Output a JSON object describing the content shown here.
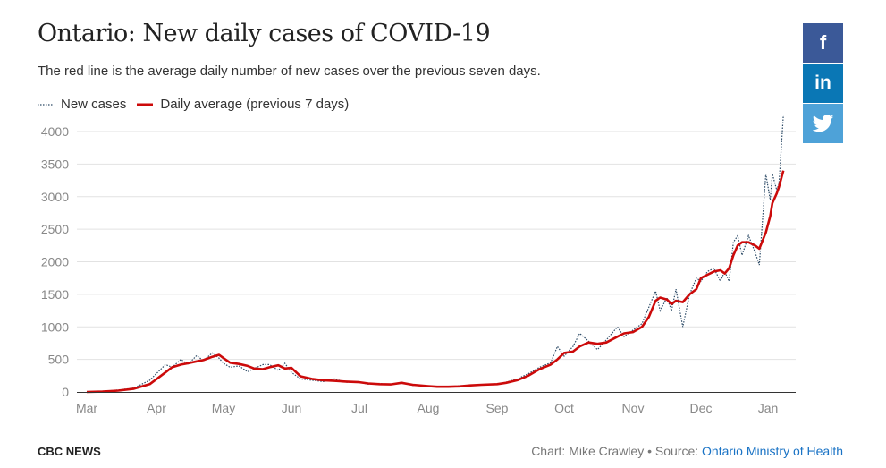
{
  "header": {
    "title": "Ontario: New daily cases of COVID-19",
    "subtitle": "The red line is the average daily number of new cases over the previous seven days."
  },
  "legend": {
    "new_cases_label": "New cases",
    "average_label": "Daily average (previous 7 days)"
  },
  "social": {
    "facebook_label": "f",
    "linkedin_label": "in",
    "twitter_icon": "twitter-bird-icon"
  },
  "footer": {
    "brand": "CBC NEWS",
    "credit_prefix": "Chart: Mike Crawley • Source: ",
    "source_link": "Ontario Ministry of Health"
  },
  "colors": {
    "average_line": "#cc0a0a",
    "cases_line": "#2c4a66",
    "grid": "#e2e2e2",
    "axis": "#333333",
    "facebook": "#3b5998",
    "linkedin": "#0a77b5",
    "twitter": "#4ea2d8"
  },
  "chart_data": {
    "type": "line",
    "ylim": [
      0,
      4000
    ],
    "yticks": [
      "0",
      "500",
      "1000",
      "1500",
      "2000",
      "2500",
      "3000",
      "3500",
      "4000"
    ],
    "xticks": [
      "Mar",
      "Apr",
      "May",
      "Jun",
      "Jul",
      "Aug",
      "Sep",
      "Oct",
      "Nov",
      "Dec",
      "Jan"
    ],
    "grid": true,
    "legend_position": "top-left",
    "series": [
      {
        "name": "New cases",
        "style": "dotted",
        "points": [
          [
            "Mar",
            0
          ],
          [
            "Mar 8",
            5
          ],
          [
            "Mar 15",
            30
          ],
          [
            "Mar 22",
            60
          ],
          [
            "Mar 29",
            180
          ],
          [
            "Apr 5",
            420
          ],
          [
            "Apr 8",
            380
          ],
          [
            "Apr 12",
            500
          ],
          [
            "Apr 15",
            420
          ],
          [
            "Apr 19",
            560
          ],
          [
            "Apr 22",
            480
          ],
          [
            "Apr 26",
            600
          ],
          [
            "Apr 29",
            520
          ],
          [
            "May 1",
            440
          ],
          [
            "May 4",
            380
          ],
          [
            "May 8",
            400
          ],
          [
            "May 12",
            310
          ],
          [
            "May 15",
            360
          ],
          [
            "May 19",
            420
          ],
          [
            "May 22",
            420
          ],
          [
            "May 26",
            330
          ],
          [
            "May 29",
            440
          ],
          [
            "Jun 1",
            300
          ],
          [
            "Jun 5",
            200
          ],
          [
            "Jun 10",
            180
          ],
          [
            "Jun 15",
            160
          ],
          [
            "Jun 20",
            200
          ],
          [
            "Jun 25",
            150
          ],
          [
            "Jul 1",
            150
          ],
          [
            "Jul 5",
            120
          ],
          [
            "Jul 10",
            130
          ],
          [
            "Jul 15",
            110
          ],
          [
            "Jul 20",
            150
          ],
          [
            "Jul 25",
            100
          ],
          [
            "Aug 1",
            90
          ],
          [
            "Aug 5",
            80
          ],
          [
            "Aug 10",
            70
          ],
          [
            "Aug 15",
            95
          ],
          [
            "Aug 20",
            100
          ],
          [
            "Aug 25",
            110
          ],
          [
            "Sep 1",
            120
          ],
          [
            "Sep 5",
            150
          ],
          [
            "Sep 10",
            200
          ],
          [
            "Sep 15",
            280
          ],
          [
            "Sep 20",
            380
          ],
          [
            "Sep 25",
            450
          ],
          [
            "Sep 28",
            700
          ],
          [
            "Oct 1",
            550
          ],
          [
            "Oct 5",
            700
          ],
          [
            "Oct 8",
            900
          ],
          [
            "Oct 12",
            780
          ],
          [
            "Oct 16",
            650
          ],
          [
            "Oct 20",
            800
          ],
          [
            "Oct 25",
            1000
          ],
          [
            "Oct 28",
            850
          ],
          [
            "Nov 1",
            950
          ],
          [
            "Nov 5",
            1050
          ],
          [
            "Nov 8",
            1300
          ],
          [
            "Nov 11",
            1550
          ],
          [
            "Nov 13",
            1250
          ],
          [
            "Nov 16",
            1450
          ],
          [
            "Nov 18",
            1250
          ],
          [
            "Nov 20",
            1580
          ],
          [
            "Nov 23",
            1000
          ],
          [
            "Nov 26",
            1500
          ],
          [
            "Nov 29",
            1750
          ],
          [
            "Dec 1",
            1700
          ],
          [
            "Dec 4",
            1850
          ],
          [
            "Dec 7",
            1900
          ],
          [
            "Dec 10",
            1700
          ],
          [
            "Dec 12",
            1850
          ],
          [
            "Dec 14",
            1700
          ],
          [
            "Dec 16",
            2300
          ],
          [
            "Dec 18",
            2400
          ],
          [
            "Dec 20",
            2100
          ],
          [
            "Dec 23",
            2400
          ],
          [
            "Dec 26",
            2150
          ],
          [
            "Dec 28",
            1950
          ],
          [
            "Dec 31",
            3350
          ],
          [
            "Jan 2",
            2950
          ],
          [
            "Jan 3",
            3350
          ],
          [
            "Jan 5",
            3100
          ],
          [
            "Jan 6",
            3200
          ],
          [
            "Jan 8",
            4250
          ]
        ]
      },
      {
        "name": "Daily average (previous 7 days)",
        "style": "solid",
        "points": [
          [
            "Mar",
            0
          ],
          [
            "Mar 8",
            5
          ],
          [
            "Mar 15",
            20
          ],
          [
            "Mar 22",
            50
          ],
          [
            "Mar 29",
            120
          ],
          [
            "Apr 5",
            300
          ],
          [
            "Apr 8",
            380
          ],
          [
            "Apr 12",
            420
          ],
          [
            "Apr 15",
            440
          ],
          [
            "Apr 19",
            470
          ],
          [
            "Apr 22",
            490
          ],
          [
            "Apr 26",
            540
          ],
          [
            "Apr 29",
            570
          ],
          [
            "May 1",
            520
          ],
          [
            "May 4",
            450
          ],
          [
            "May 8",
            430
          ],
          [
            "May 12",
            400
          ],
          [
            "May 15",
            360
          ],
          [
            "May 19",
            350
          ],
          [
            "May 22",
            380
          ],
          [
            "May 26",
            410
          ],
          [
            "May 29",
            360
          ],
          [
            "Jun 1",
            370
          ],
          [
            "Jun 5",
            240
          ],
          [
            "Jun 10",
            200
          ],
          [
            "Jun 15",
            180
          ],
          [
            "Jun 20",
            170
          ],
          [
            "Jun 25",
            160
          ],
          [
            "Jul 1",
            150
          ],
          [
            "Jul 5",
            130
          ],
          [
            "Jul 10",
            120
          ],
          [
            "Jul 15",
            115
          ],
          [
            "Jul 20",
            140
          ],
          [
            "Jul 25",
            110
          ],
          [
            "Aug 1",
            90
          ],
          [
            "Aug 5",
            80
          ],
          [
            "Aug 10",
            80
          ],
          [
            "Aug 15",
            85
          ],
          [
            "Aug 20",
            100
          ],
          [
            "Aug 25",
            110
          ],
          [
            "Sep 1",
            120
          ],
          [
            "Sep 5",
            140
          ],
          [
            "Sep 10",
            180
          ],
          [
            "Sep 15",
            250
          ],
          [
            "Sep 20",
            350
          ],
          [
            "Sep 25",
            420
          ],
          [
            "Sep 28",
            500
          ],
          [
            "Oct 1",
            600
          ],
          [
            "Oct 5",
            620
          ],
          [
            "Oct 8",
            700
          ],
          [
            "Oct 12",
            760
          ],
          [
            "Oct 16",
            740
          ],
          [
            "Oct 20",
            760
          ],
          [
            "Oct 25",
            850
          ],
          [
            "Oct 28",
            900
          ],
          [
            "Nov 1",
            920
          ],
          [
            "Nov 5",
            1000
          ],
          [
            "Nov 8",
            1150
          ],
          [
            "Nov 11",
            1400
          ],
          [
            "Nov 13",
            1450
          ],
          [
            "Nov 16",
            1420
          ],
          [
            "Nov 18",
            1350
          ],
          [
            "Nov 20",
            1400
          ],
          [
            "Nov 23",
            1380
          ],
          [
            "Nov 26",
            1500
          ],
          [
            "Nov 29",
            1580
          ],
          [
            "Dec 1",
            1750
          ],
          [
            "Dec 4",
            1800
          ],
          [
            "Dec 7",
            1850
          ],
          [
            "Dec 10",
            1870
          ],
          [
            "Dec 12",
            1820
          ],
          [
            "Dec 14",
            1900
          ],
          [
            "Dec 16",
            2100
          ],
          [
            "Dec 18",
            2250
          ],
          [
            "Dec 20",
            2300
          ],
          [
            "Dec 23",
            2300
          ],
          [
            "Dec 26",
            2250
          ],
          [
            "Dec 28",
            2200
          ],
          [
            "Dec 31",
            2450
          ],
          [
            "Jan 2",
            2700
          ],
          [
            "Jan 3",
            2900
          ],
          [
            "Jan 5",
            3050
          ],
          [
            "Jan 6",
            3150
          ],
          [
            "Jan 8",
            3400
          ]
        ]
      }
    ]
  }
}
